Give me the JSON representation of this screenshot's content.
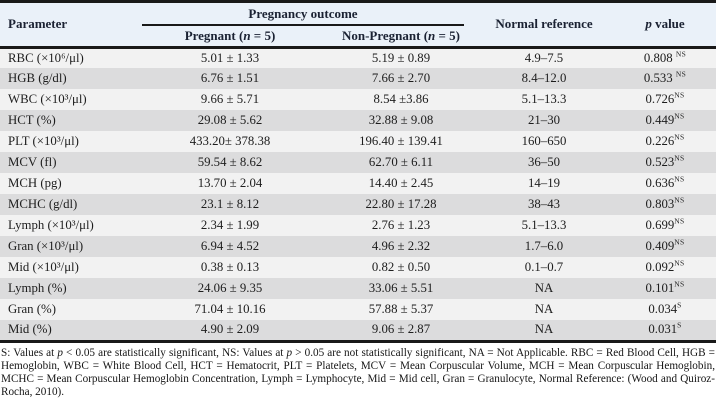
{
  "table": {
    "headers": {
      "parameter": "Parameter",
      "pregnancy_outcome": "Pregnancy outcome",
      "pregnant": {
        "prefix": "Pregnant (",
        "italic": "n",
        "suffix": " = 5)"
      },
      "non_pregnant": {
        "prefix": "Non-Pregnant (",
        "italic": "n",
        "suffix": " = 5)"
      },
      "normal_reference": "Normal reference",
      "p_value": {
        "prefix": "",
        "italic": "p",
        "suffix": " value"
      }
    },
    "rows": [
      {
        "parameter": "RBC (×10⁶/μl)",
        "pregnant": "5.01 ± 1.33",
        "non_pregnant": "5.19 ± 0.89",
        "normal_reference": "4.9–7.5",
        "p": "0.808 ",
        "p_sup": "NS"
      },
      {
        "parameter": "HGB (g/dl)",
        "pregnant": "6.76 ± 1.51",
        "non_pregnant": "7.66 ± 2.70",
        "normal_reference": "8.4–12.0",
        "p": "0.533 ",
        "p_sup": "NS"
      },
      {
        "parameter": "WBC (×10³/μl)",
        "pregnant": "9.66 ± 5.71",
        "non_pregnant": "8.54 ±3.86",
        "normal_reference": "5.1–13.3",
        "p": "0.726",
        "p_sup": "NS"
      },
      {
        "parameter": "HCT (%)",
        "pregnant": "29.08 ± 5.62",
        "non_pregnant": "32.88 ± 9.08",
        "normal_reference": "21–30",
        "p": "0.449",
        "p_sup": "NS"
      },
      {
        "parameter": "PLT (×10³/μl)",
        "pregnant": "433.20± 378.38",
        "non_pregnant": "196.40 ± 139.41",
        "normal_reference": "160–650",
        "p": "0.226",
        "p_sup": "NS"
      },
      {
        "parameter": "MCV (fl)",
        "pregnant": "59.54 ± 8.62",
        "non_pregnant": "62.70 ± 6.11",
        "normal_reference": "36–50",
        "p": "0.523",
        "p_sup": "NS"
      },
      {
        "parameter": "MCH (pg)",
        "pregnant": "13.70 ± 2.04",
        "non_pregnant": "14.40 ± 2.45",
        "normal_reference": "14–19",
        "p": "0.636",
        "p_sup": "NS"
      },
      {
        "parameter": "MCHC (g/dl)",
        "pregnant": "23.1 ± 8.12",
        "non_pregnant": "22.80 ± 17.28",
        "normal_reference": "38–43",
        "p": "0.803",
        "p_sup": "NS"
      },
      {
        "parameter": "Lymph (×10³/μl)",
        "pregnant": "2.34 ± 1.99",
        "non_pregnant": "2.76 ± 1.23",
        "normal_reference": "5.1–13.3",
        "p": "0.699",
        "p_sup": "NS"
      },
      {
        "parameter": "Gran (×10³/μl)",
        "pregnant": "6.94 ± 4.52",
        "non_pregnant": "4.96 ± 2.32",
        "normal_reference": "1.7–6.0",
        "p": "0.409",
        "p_sup": "NS"
      },
      {
        "parameter": "Mid (×10³/μl)",
        "pregnant": "0.38 ± 0.13",
        "non_pregnant": "0.82 ± 0.50",
        "normal_reference": "0.1–0.7",
        "p": "0.092",
        "p_sup": "NS"
      },
      {
        "parameter": "Lymph (%)",
        "pregnant": "24.06 ± 9.35",
        "non_pregnant": "33.06 ± 5.51",
        "normal_reference": "NA",
        "p": "0.101",
        "p_sup": "NS"
      },
      {
        "parameter": "Gran (%)",
        "pregnant": "71.04 ± 10.16",
        "non_pregnant": "57.88 ± 5.37",
        "normal_reference": "NA",
        "p": "0.034",
        "p_sup": "S"
      },
      {
        "parameter": "Mid (%)",
        "pregnant": "4.90 ± 2.09",
        "non_pregnant": "9.06 ± 2.87",
        "normal_reference": "NA",
        "p": "0.031",
        "p_sup": "S"
      }
    ],
    "footnote_parts": [
      {
        "t": "S: Values at "
      },
      {
        "t": "p",
        "i": true
      },
      {
        "t": " < 0.05 are statistically significant, NS: Values at "
      },
      {
        "t": "p",
        "i": true
      },
      {
        "t": " > 0.05 are not statistically significant, NA = Not Applicable. RBC = Red Blood Cell, HGB = Hemoglobin, WBC = White Blood Cell, HCT = Hematocrit, PLT = Platelets, MCV = Mean Corpuscular Volume, MCH = Mean Corpuscular Hemoglobin, MCHC = Mean Corpuscular Hemoglobin Concentration, Lymph = Lymphocyte, Mid = Mid cell, Gran = Granulocyte, Normal Reference: (Wood and Quiroz-Rocha, 2010)."
      }
    ]
  },
  "colors": {
    "header_background": "#eaf1f9",
    "row_light": "#f2f2f2",
    "row_dark": "#dcdcdd",
    "border": "#191919",
    "text": "#1d1d1d"
  }
}
